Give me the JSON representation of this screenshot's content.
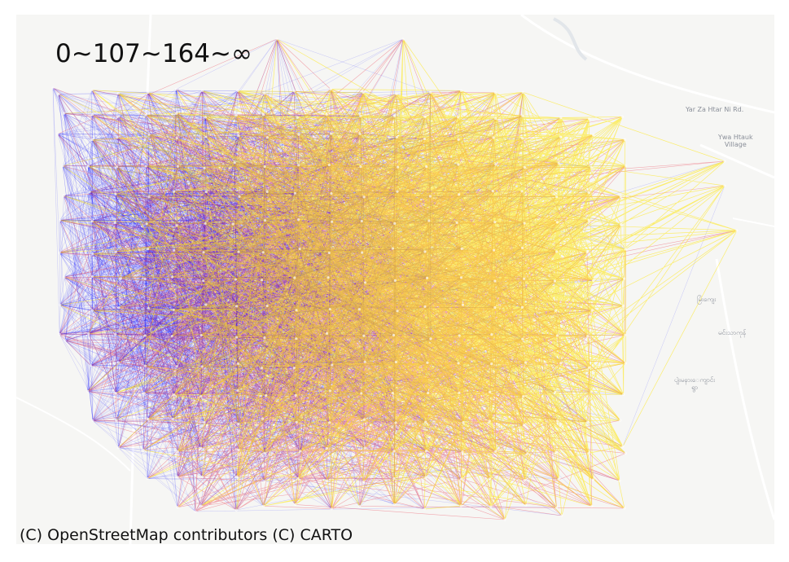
{
  "legend": {
    "title": "0~107~164~∞"
  },
  "attribution": "(C) OpenStreetMap contributors (C) CARTO",
  "basemap_labels": {
    "road": "Yar Za Htar Ni Rd.",
    "village": "Ywa Htauk\nVillage",
    "myanmar_1": "မြံးကျေး",
    "myanmar_2": "မင်းသာကုန်",
    "myanmar_3": "ပျဲးမနားေကျာင်း\nရွာ"
  },
  "colors": {
    "low": "#1a1aff",
    "mid": "#e8102a",
    "high": "#ffe600",
    "basemap": "#f6f6f4",
    "road": "#ffffff",
    "water": "#e2e6ea"
  },
  "layers": [
    "low",
    "mid",
    "high"
  ]
}
